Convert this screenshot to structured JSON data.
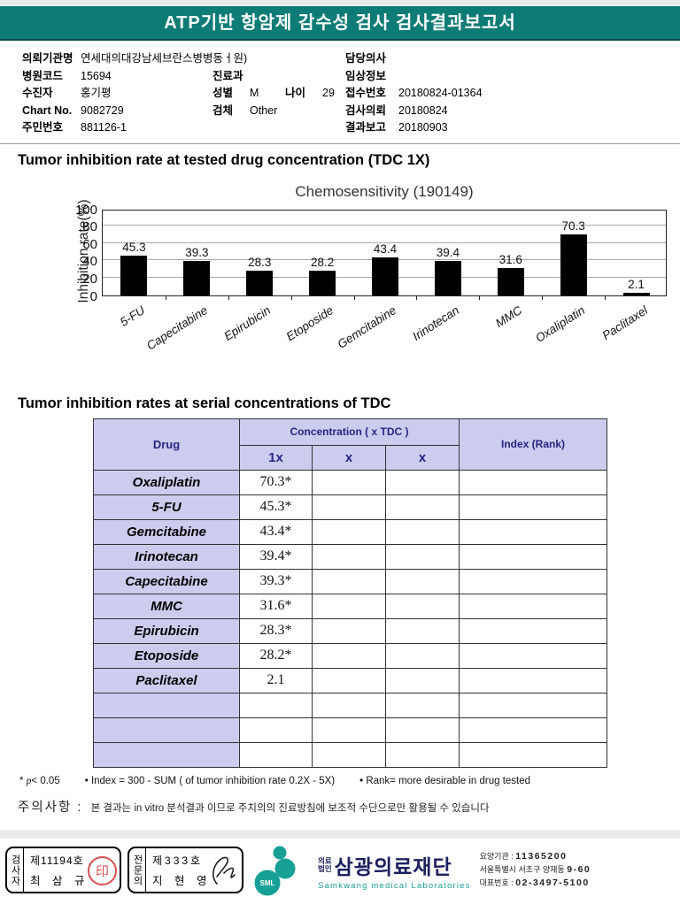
{
  "header": {
    "title": "ATP기반 항암제 감수성 검사 검사결과보고서"
  },
  "patient": {
    "r1": {
      "l": "의뢰기관명",
      "v": "연세대의대강남세브란스병병동ㅓ원)",
      "rl": "담당의사",
      "rv": ""
    },
    "r2": {
      "l": "병원코드",
      "v": "15694",
      "ml": "진료과",
      "mv": "",
      "rl": "임상정보",
      "rv": ""
    },
    "r3": {
      "l": "수진자",
      "v": "홍기평",
      "ml": "성별",
      "mv": "M",
      "ml2": "나이",
      "mv2": "29",
      "rl": "접수번호",
      "rv": "20180824-01364"
    },
    "r4": {
      "l": "Chart No.",
      "v": "9082729",
      "ml": "검체",
      "mv": "Other",
      "rl": "검사의뢰",
      "rv": "20180824"
    },
    "r5": {
      "l": "주민번호",
      "v": "881126-1",
      "rl": "결과보고",
      "rv": "20180903"
    }
  },
  "sections": {
    "chart_section_title": "Tumor inhibition rate at tested drug concentration (TDC 1X)",
    "table_section_title": "Tumor inhibition rates at serial concentrations of TDC"
  },
  "chart_data": {
    "type": "bar",
    "title": "Chemosensitivity (190149)",
    "ylabel": "Inhibition rate(%)",
    "categories": [
      "5-FU",
      "Capecitabine",
      "Epirubicin",
      "Etoposide",
      "Gemcitabine",
      "Irinotecan",
      "MMC",
      "Oxaliplatin",
      "Paclitaxel"
    ],
    "values": [
      45.3,
      39.3,
      28.3,
      28.2,
      43.4,
      39.4,
      31.6,
      70.3,
      2.1
    ],
    "ylim": [
      0,
      100
    ],
    "yticks": [
      0,
      20,
      40,
      60,
      80,
      100
    ],
    "bar_color": "#000000",
    "grid": true,
    "legend": "none"
  },
  "table": {
    "col_drug": "Drug",
    "col_conc": "Concentration ( x TDC )",
    "col_index": "Index (Rank)",
    "sub_cols": [
      "1x",
      "x",
      "x"
    ],
    "rows": [
      {
        "drug": "Oxaliplatin",
        "c1": "70.3*",
        "c2": "",
        "c3": "",
        "index": ""
      },
      {
        "drug": "5-FU",
        "c1": "45.3*",
        "c2": "",
        "c3": "",
        "index": ""
      },
      {
        "drug": "Gemcitabine",
        "c1": "43.4*",
        "c2": "",
        "c3": "",
        "index": ""
      },
      {
        "drug": "Irinotecan",
        "c1": "39.4*",
        "c2": "",
        "c3": "",
        "index": ""
      },
      {
        "drug": "Capecitabine",
        "c1": "39.3*",
        "c2": "",
        "c3": "",
        "index": ""
      },
      {
        "drug": "MMC",
        "c1": "31.6*",
        "c2": "",
        "c3": "",
        "index": ""
      },
      {
        "drug": "Epirubicin",
        "c1": "28.3*",
        "c2": "",
        "c3": "",
        "index": ""
      },
      {
        "drug": "Etoposide",
        "c1": "28.2*",
        "c2": "",
        "c3": "",
        "index": ""
      },
      {
        "drug": "Paclitaxel",
        "c1": "2.1",
        "c2": "",
        "c3": "",
        "index": ""
      },
      {
        "drug": "",
        "c1": "",
        "c2": "",
        "c3": "",
        "index": ""
      },
      {
        "drug": "",
        "c1": "",
        "c2": "",
        "c3": "",
        "index": ""
      },
      {
        "drug": "",
        "c1": "",
        "c2": "",
        "c3": "",
        "index": ""
      }
    ]
  },
  "footnotes": {
    "star": "* ",
    "p_italic": "p",
    "p_rest": "< 0.05",
    "index_note": "• Index = 300 - SUM ( of tumor inhibition rate 0.2X  -  5X)",
    "rank_note": "• Rank= more desirable in drug tested",
    "caution_label": "주의사항 :",
    "caution_text": "본 결과는 in vitro 분석결과 이므로 주치의의 진료방침에 보조적 수단으로만 활용될 수 있습니다"
  },
  "footer": {
    "examiner": {
      "role": "검사자",
      "cert": "제11194호",
      "name": "최 삼 규",
      "seal_glyph": "印"
    },
    "specialist": {
      "role": "전문의",
      "cert": "제333호",
      "name": "지 현 영"
    },
    "logo": {
      "sml": "SML",
      "org_small_1": "의료",
      "org_small_2": "법인",
      "org_kr": "삼광의료재단",
      "org_en": "Samkwang medical Laboratories",
      "teal": "#17a096",
      "navy": "#1b2060"
    },
    "info": {
      "l1_label": "요양기관 :",
      "l1_value": "11365200",
      "l2_value": "서울특별시 서초구 양재동",
      "l2_bold": "9-60",
      "l3_label": "대표번호 :",
      "l3_value": "02-3497-5100"
    }
  },
  "colors": {
    "header_teal": "#0d7b76",
    "table_header_bg": "#ccccee",
    "table_header_text": "#252585",
    "bar": "#000000"
  }
}
